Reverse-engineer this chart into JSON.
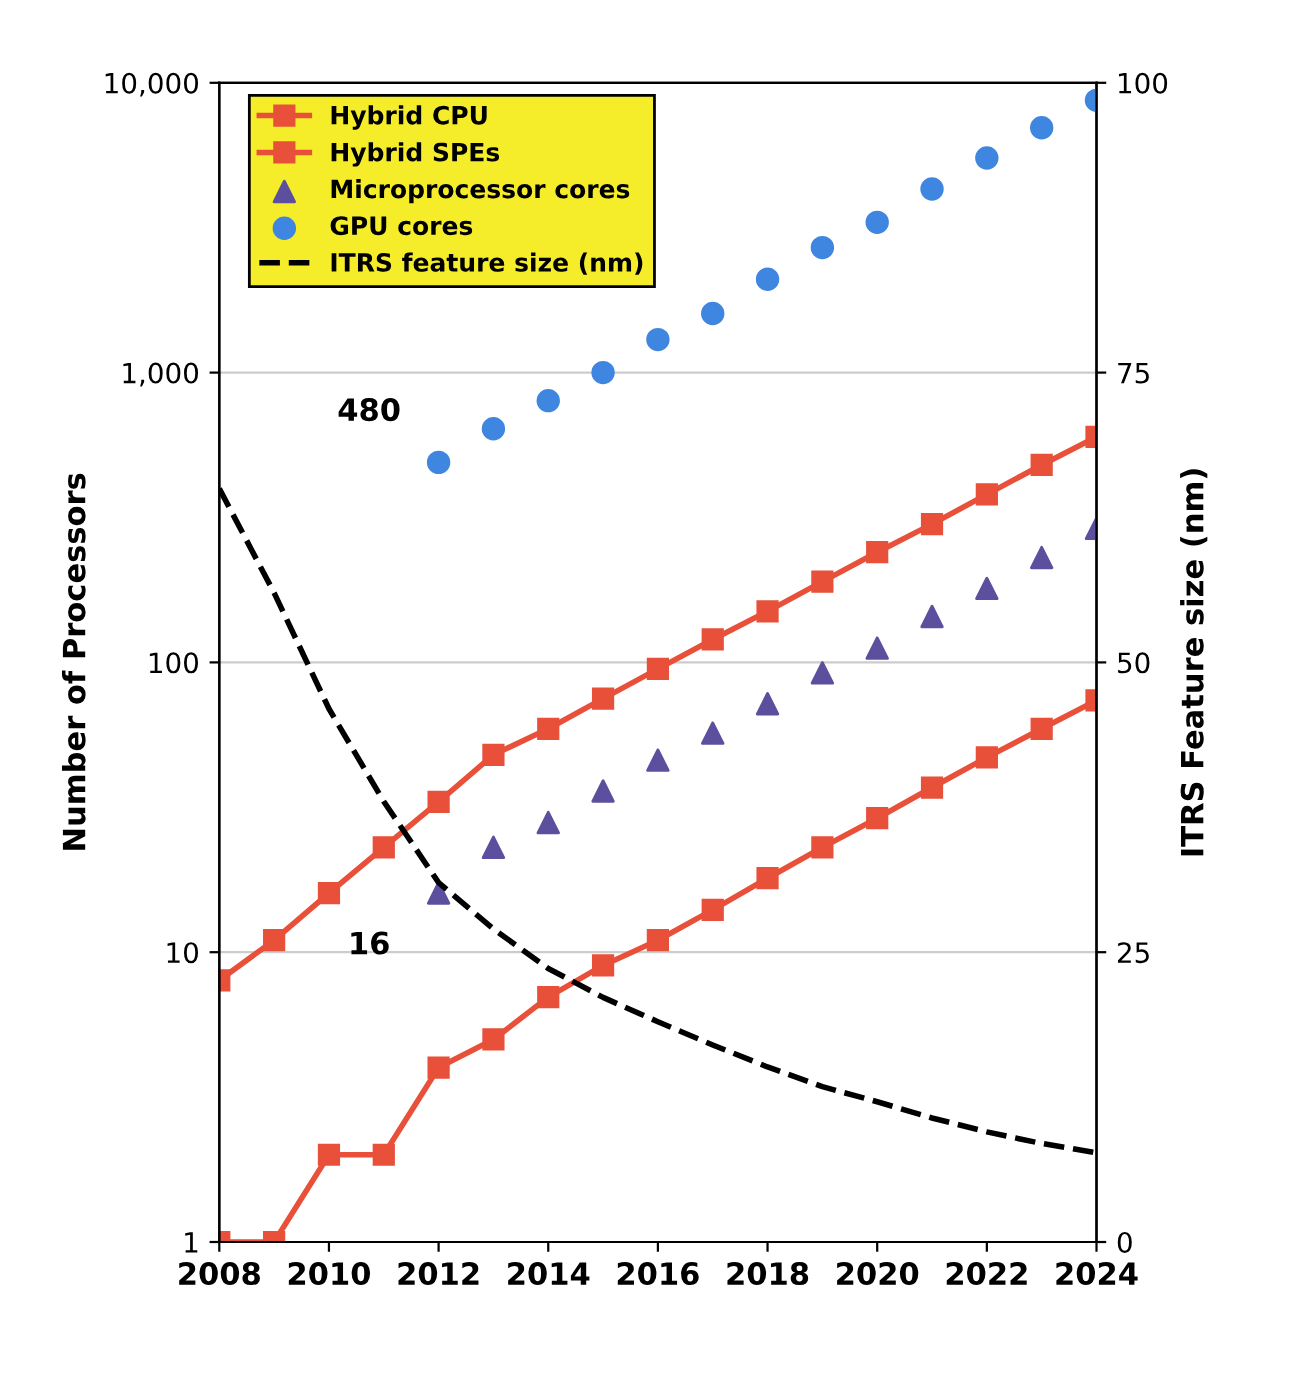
{
  "chart_data": {
    "type": "line",
    "xlabel": null,
    "ylabel": "Number of Processors",
    "y2label": "ITRS Feature size (nm)",
    "log": "y",
    "grid": "y",
    "legend": "top left",
    "x": [
      2008,
      2009,
      2010,
      2011,
      2012,
      2013,
      2014,
      2015,
      2016,
      2017,
      2018,
      2019,
      2020,
      2021,
      2022,
      2023,
      2024
    ],
    "xlim": [
      2008,
      2024
    ],
    "xticks": [
      2008,
      2010,
      2012,
      2014,
      2016,
      2018,
      2020,
      2022,
      2024
    ],
    "ylim": [
      1,
      10000
    ],
    "yticks": [
      {
        "value": 1,
        "label": "1"
      },
      {
        "value": 10,
        "label": "10"
      },
      {
        "value": 100,
        "label": "100"
      },
      {
        "value": 1000,
        "label": "1,000"
      },
      {
        "value": 10000,
        "label": "10,000"
      }
    ],
    "y2lim": [
      0,
      100
    ],
    "y2ticks": [
      0,
      25,
      50,
      75,
      100
    ],
    "series": [
      {
        "name": "Hybrid CPU",
        "color": "#e8503a",
        "marker": "square",
        "values": [
          1,
          1,
          2,
          2,
          4,
          5,
          7,
          9,
          11,
          14,
          18,
          23,
          29,
          37,
          47,
          59,
          74
        ]
      },
      {
        "name": "Hybrid SPEs",
        "color": "#e8503a",
        "marker": "square",
        "values": [
          8,
          11,
          16,
          23,
          33,
          48,
          59,
          75,
          95,
          120,
          150,
          190,
          240,
          300,
          380,
          480,
          600
        ]
      },
      {
        "name": "Microprocessor cores",
        "type": "scatter",
        "color": "#5b4f9e",
        "marker": "triangle",
        "values": [
          null,
          null,
          null,
          null,
          16,
          23,
          28,
          36,
          46,
          57,
          72,
          92,
          112,
          144,
          180,
          230,
          290
        ]
      },
      {
        "name": "GPU cores",
        "type": "scatter",
        "color": "#3f86e0",
        "marker": "circle",
        "values": [
          null,
          null,
          null,
          null,
          490,
          640,
          800,
          1000,
          1300,
          1600,
          2100,
          2700,
          3300,
          4300,
          5500,
          7000,
          8700
        ]
      },
      {
        "name": "ITRS feature size (nm)",
        "axis": "y2",
        "color": "#000000",
        "marker": "none",
        "line_style": "dashed",
        "values": [
          65,
          56,
          46,
          38,
          31,
          27,
          23.6,
          21.1,
          19,
          17,
          15.1,
          13.4,
          12.1,
          10.7,
          9.5,
          8.5,
          7.7
        ]
      }
    ],
    "annotations": [
      {
        "text": "480",
        "x": 2012,
        "y": 490
      },
      {
        "text": "16",
        "x": 2012,
        "y": 16
      }
    ]
  }
}
